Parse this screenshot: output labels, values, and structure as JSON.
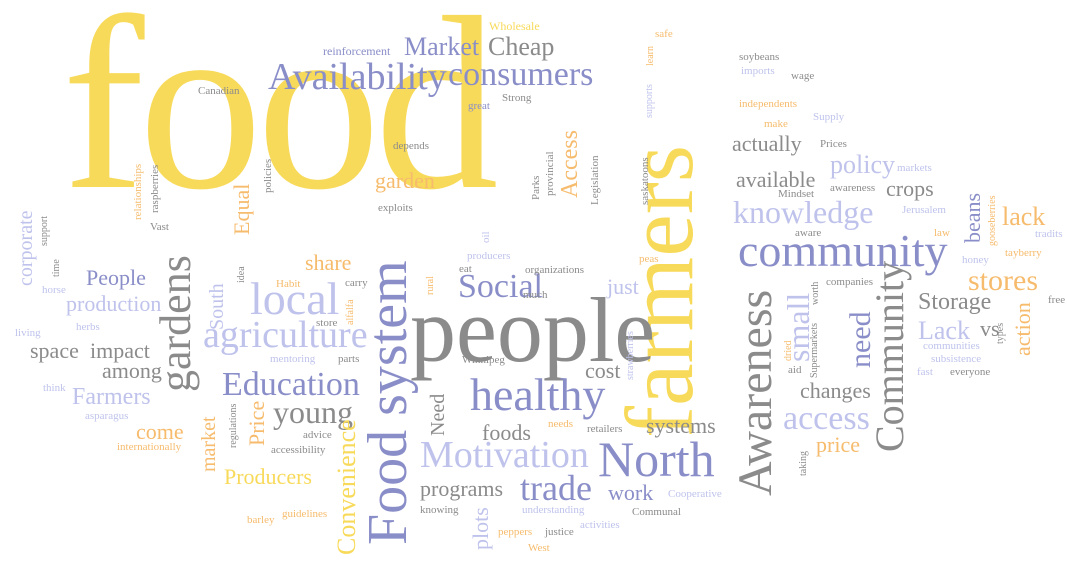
{
  "palette": {
    "yellow": "#f8da5a",
    "lavender": "#8a8ec8",
    "gray": "#8b8b8b",
    "light_lavender": "#bfc3ec",
    "orange": "#f6bb6c",
    "light_gray": "#c8c8c8",
    "dark": "#555555"
  },
  "words": [
    {
      "text": "food",
      "color": "yellow"
    },
    {
      "text": "farmers",
      "color": "yellow"
    },
    {
      "text": "people",
      "color": "gray"
    },
    {
      "text": "Food system",
      "color": "lavender"
    },
    {
      "text": "North",
      "color": "lavender"
    },
    {
      "text": "community",
      "color": "lavender"
    },
    {
      "text": "Awareness",
      "color": "gray"
    },
    {
      "text": "Community",
      "color": "gray"
    },
    {
      "text": "healthy",
      "color": "lavender"
    },
    {
      "text": "Availability",
      "color": "lavender"
    },
    {
      "text": "consumers",
      "color": "lavender"
    },
    {
      "text": "gardens",
      "color": "gray"
    },
    {
      "text": "local",
      "color": "light_lavender"
    },
    {
      "text": "agriculture",
      "color": "light_lavender"
    },
    {
      "text": "Motivation",
      "color": "light_lavender"
    },
    {
      "text": "Education",
      "color": "lavender"
    },
    {
      "text": "knowledge",
      "color": "light_lavender"
    },
    {
      "text": "trade",
      "color": "lavender"
    },
    {
      "text": "young",
      "color": "gray"
    },
    {
      "text": "Social",
      "color": "lavender"
    },
    {
      "text": "access",
      "color": "light_lavender"
    },
    {
      "text": "stores",
      "color": "orange"
    },
    {
      "text": "Convenience",
      "color": "yellow"
    },
    {
      "text": "Market",
      "color": "lavender"
    },
    {
      "text": "Cheap",
      "color": "gray"
    },
    {
      "text": "need",
      "color": "lavender"
    },
    {
      "text": "small",
      "color": "light_lavender"
    },
    {
      "text": "policy",
      "color": "light_lavender"
    },
    {
      "text": "actually",
      "color": "gray"
    },
    {
      "text": "available",
      "color": "gray"
    },
    {
      "text": "crops",
      "color": "gray"
    },
    {
      "text": "lack",
      "color": "orange"
    },
    {
      "text": "Storage",
      "color": "gray"
    },
    {
      "text": "Lack",
      "color": "light_lavender"
    },
    {
      "text": "vs",
      "color": "gray"
    },
    {
      "text": "action",
      "color": "orange"
    },
    {
      "text": "beans",
      "color": "lavender"
    },
    {
      "text": "changes",
      "color": "gray"
    },
    {
      "text": "price",
      "color": "orange"
    },
    {
      "text": "systems",
      "color": "gray"
    },
    {
      "text": "foods",
      "color": "gray"
    },
    {
      "text": "programs",
      "color": "gray"
    },
    {
      "text": "work",
      "color": "lavender"
    },
    {
      "text": "plots",
      "color": "light_lavender"
    },
    {
      "text": "cost",
      "color": "gray"
    },
    {
      "text": "just",
      "color": "light_lavender"
    },
    {
      "text": "Need",
      "color": "gray"
    },
    {
      "text": "share",
      "color": "orange"
    },
    {
      "text": "garden",
      "color": "orange"
    },
    {
      "text": "Access",
      "color": "orange"
    },
    {
      "text": "Equal",
      "color": "orange"
    },
    {
      "text": "People",
      "color": "lavender"
    },
    {
      "text": "production",
      "color": "light_lavender"
    },
    {
      "text": "space",
      "color": "gray"
    },
    {
      "text": "impact",
      "color": "gray"
    },
    {
      "text": "among",
      "color": "gray"
    },
    {
      "text": "Farmers",
      "color": "light_lavender"
    },
    {
      "text": "come",
      "color": "orange"
    },
    {
      "text": "market",
      "color": "orange"
    },
    {
      "text": "Price",
      "color": "orange"
    },
    {
      "text": "Producers",
      "color": "yellow"
    },
    {
      "text": "South",
      "color": "light_lavender"
    },
    {
      "text": "corporate",
      "color": "light_lavender"
    },
    {
      "text": "Wholesale",
      "color": "yellow"
    },
    {
      "text": "reinforcement",
      "color": "lavender"
    },
    {
      "text": "Canadian",
      "color": "gray"
    },
    {
      "text": "great",
      "color": "lavender"
    },
    {
      "text": "Strong",
      "color": "gray"
    },
    {
      "text": "depends",
      "color": "gray"
    },
    {
      "text": "provincial",
      "color": "gray"
    },
    {
      "text": "Parks",
      "color": "gray"
    },
    {
      "text": "Legislation",
      "color": "gray"
    },
    {
      "text": "saskatoons",
      "color": "gray"
    },
    {
      "text": "exploits",
      "color": "gray"
    },
    {
      "text": "policies",
      "color": "gray"
    },
    {
      "text": "relationships",
      "color": "orange"
    },
    {
      "text": "raspberries",
      "color": "gray"
    },
    {
      "text": "Vast",
      "color": "gray"
    },
    {
      "text": "support",
      "color": "gray"
    },
    {
      "text": "time",
      "color": "gray"
    },
    {
      "text": "horse",
      "color": "light_lavender"
    },
    {
      "text": "herbs",
      "color": "light_lavender"
    },
    {
      "text": "living",
      "color": "light_lavender"
    },
    {
      "text": "think",
      "color": "light_lavender"
    },
    {
      "text": "asparagus",
      "color": "light_lavender"
    },
    {
      "text": "internationally",
      "color": "orange"
    },
    {
      "text": "regulations",
      "color": "gray"
    },
    {
      "text": "accessibility",
      "color": "gray"
    },
    {
      "text": "advice",
      "color": "gray"
    },
    {
      "text": "mentoring",
      "color": "light_lavender"
    },
    {
      "text": "parts",
      "color": "gray"
    },
    {
      "text": "store",
      "color": "gray"
    },
    {
      "text": "carry",
      "color": "gray"
    },
    {
      "text": "alfalfa",
      "color": "orange"
    },
    {
      "text": "rural",
      "color": "orange"
    },
    {
      "text": "idea",
      "color": "gray"
    },
    {
      "text": "Habit",
      "color": "orange"
    },
    {
      "text": "oil",
      "color": "light_lavender"
    },
    {
      "text": "producers",
      "color": "light_lavender"
    },
    {
      "text": "eat",
      "color": "gray"
    },
    {
      "text": "much",
      "color": "gray"
    },
    {
      "text": "organizations",
      "color": "gray"
    },
    {
      "text": "peas",
      "color": "orange"
    },
    {
      "text": "Winnipeg",
      "color": "gray"
    },
    {
      "text": "strawberries",
      "color": "light_lavender"
    },
    {
      "text": "needs",
      "color": "orange"
    },
    {
      "text": "retailers",
      "color": "gray"
    },
    {
      "text": "guidelines",
      "color": "orange"
    },
    {
      "text": "barley",
      "color": "orange"
    },
    {
      "text": "knowing",
      "color": "gray"
    },
    {
      "text": "peppers",
      "color": "orange"
    },
    {
      "text": "understanding",
      "color": "light_lavender"
    },
    {
      "text": "justice",
      "color": "gray"
    },
    {
      "text": "activities",
      "color": "light_lavender"
    },
    {
      "text": "Communal",
      "color": "gray"
    },
    {
      "text": "Cooperative",
      "color": "light_lavender"
    },
    {
      "text": "West",
      "color": "orange"
    },
    {
      "text": "soybeans",
      "color": "gray"
    },
    {
      "text": "imports",
      "color": "light_lavender"
    },
    {
      "text": "wage",
      "color": "gray"
    },
    {
      "text": "safe",
      "color": "orange"
    },
    {
      "text": "learn",
      "color": "orange"
    },
    {
      "text": "supports",
      "color": "light_lavender"
    },
    {
      "text": "independents",
      "color": "orange"
    },
    {
      "text": "make",
      "color": "orange"
    },
    {
      "text": "Supply",
      "color": "light_lavender"
    },
    {
      "text": "Prices",
      "color": "gray"
    },
    {
      "text": "markets",
      "color": "light_lavender"
    },
    {
      "text": "awareness",
      "color": "gray"
    },
    {
      "text": "Mindset",
      "color": "gray"
    },
    {
      "text": "aware",
      "color": "gray"
    },
    {
      "text": "Jerusalem",
      "color": "light_lavender"
    },
    {
      "text": "law",
      "color": "orange"
    },
    {
      "text": "gooseberries",
      "color": "orange"
    },
    {
      "text": "tradits",
      "color": "light_lavender"
    },
    {
      "text": "tayberry",
      "color": "orange"
    },
    {
      "text": "honey",
      "color": "light_lavender"
    },
    {
      "text": "free",
      "color": "gray"
    },
    {
      "text": "companies",
      "color": "gray"
    },
    {
      "text": "worth",
      "color": "gray"
    },
    {
      "text": "Supermarkets",
      "color": "gray"
    },
    {
      "text": "dried",
      "color": "orange"
    },
    {
      "text": "aid",
      "color": "gray"
    },
    {
      "text": "communities",
      "color": "light_lavender"
    },
    {
      "text": "subsistence",
      "color": "light_lavender"
    },
    {
      "text": "types",
      "color": "gray"
    },
    {
      "text": "fast",
      "color": "light_lavender"
    },
    {
      "text": "everyone",
      "color": "gray"
    },
    {
      "text": "taking",
      "color": "gray"
    }
  ]
}
